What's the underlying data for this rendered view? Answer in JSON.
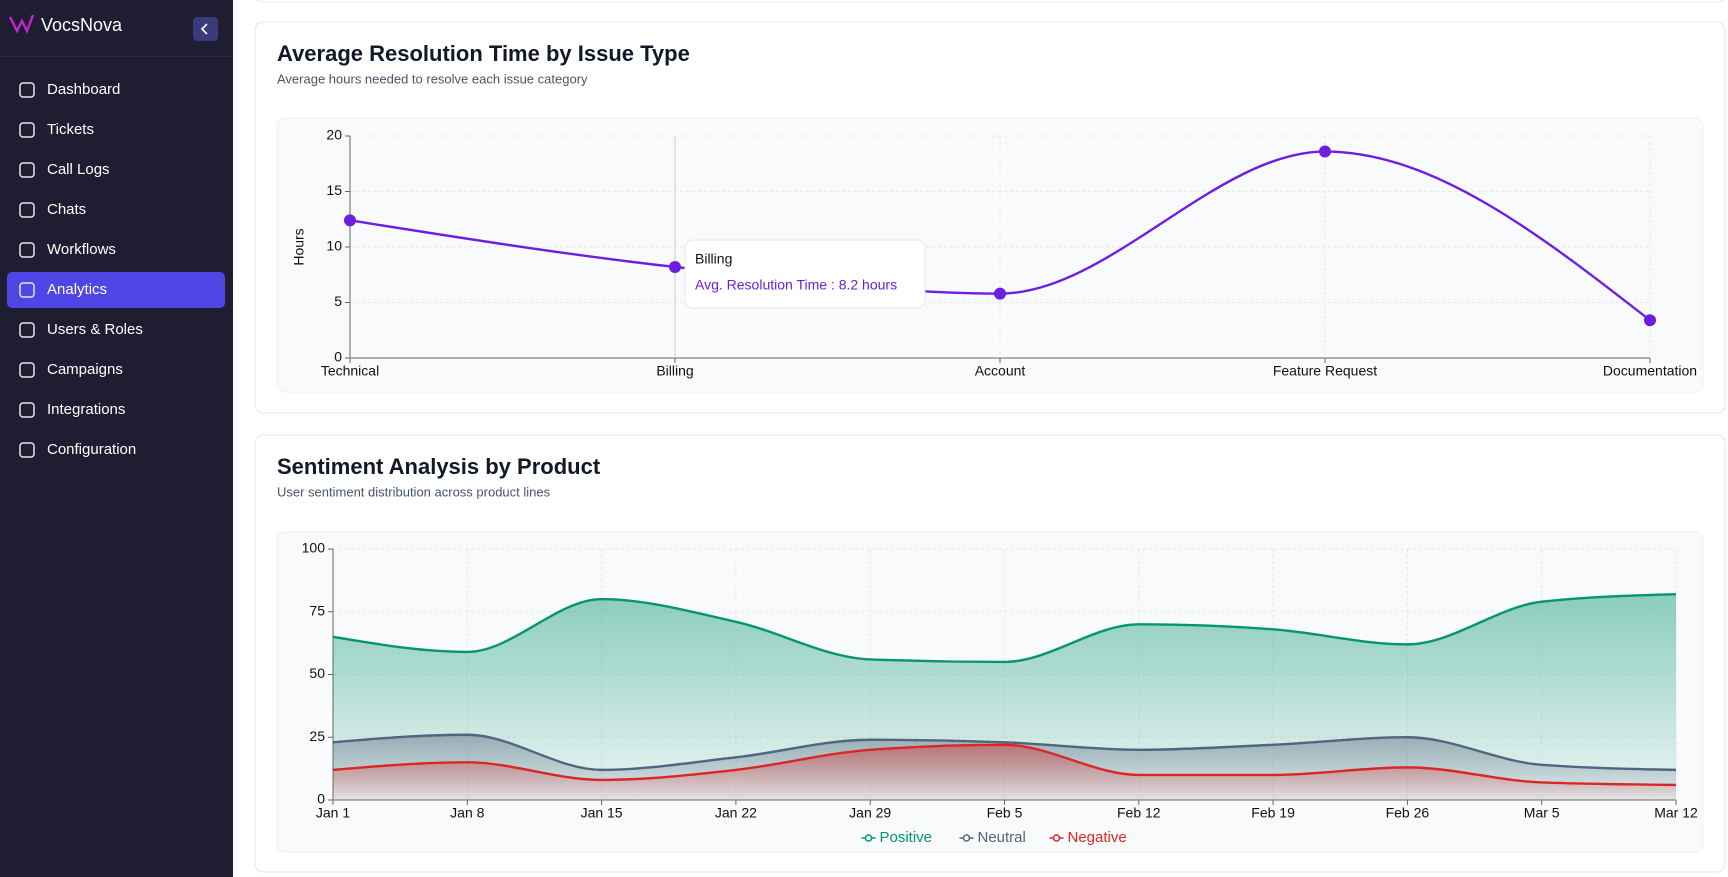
{
  "sidebar": {
    "brand": "VocsNova",
    "nav": [
      "Dashboard",
      "Tickets",
      "Call Logs",
      "Chats",
      "Workflows",
      "Analytics",
      "Users & Roles",
      "Campaigns",
      "Integrations",
      "Configuration"
    ],
    "active": 5
  },
  "chart_data": [
    {
      "type": "line",
      "title": "Average Resolution Time by Issue Type",
      "subtitle": "Average hours needed to resolve each issue category",
      "categories": [
        "Technical",
        "Billing",
        "Account",
        "Feature Request",
        "Documentation"
      ],
      "series": [
        {
          "name": "Avg. Resolution Time",
          "color": "#6d1ee0",
          "values": [
            12.4,
            8.2,
            5.8,
            18.6,
            3.4
          ]
        }
      ],
      "ylim": [
        0,
        20
      ],
      "yticks": [
        0,
        5,
        10,
        15,
        20
      ],
      "y_label": "Hours",
      "grid": true,
      "tooltip": {
        "category": 1,
        "text": "Avg. Resolution Time : 8.2 hours"
      }
    },
    {
      "type": "area",
      "title": "Sentiment Analysis by Product",
      "subtitle": "User sentiment distribution across product lines",
      "x": [
        "Jan 1",
        "Jan 8",
        "Jan 15",
        "Jan 22",
        "Jan 29",
        "Feb 5",
        "Feb 12",
        "Feb 19",
        "Feb 26",
        "Mar 5",
        "Mar 12"
      ],
      "series": [
        {
          "name": "Positive",
          "color": "#059669",
          "values": [
            65,
            59,
            80,
            71,
            56,
            55,
            70,
            68,
            62,
            79,
            82
          ]
        },
        {
          "name": "Neutral",
          "color": "#52657e",
          "values": [
            23,
            26,
            12,
            17,
            24,
            23,
            20,
            22,
            25,
            14,
            12
          ]
        },
        {
          "name": "Negative",
          "color": "#dc2626",
          "values": [
            12,
            15,
            8,
            12,
            20,
            22,
            10,
            10,
            13,
            7,
            6
          ]
        }
      ],
      "ylim": [
        0,
        100
      ],
      "yticks": [
        0,
        25,
        50,
        75,
        100
      ],
      "grid": true,
      "legend": "bottom"
    }
  ]
}
